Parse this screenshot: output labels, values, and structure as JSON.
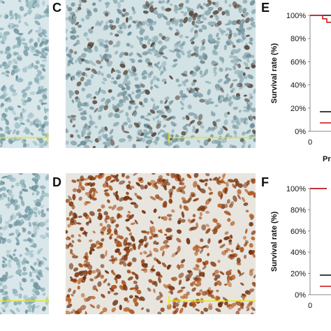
{
  "panels": {
    "left_top_img": {
      "tone": "light-blue"
    },
    "C": {
      "letter": "C",
      "tone": "light-blue-nuclei"
    },
    "left_bottom_img": {
      "tone": "light-blue"
    },
    "D": {
      "letter": "D",
      "tone": "brown-nuclei"
    },
    "E": {
      "letter": "E"
    },
    "F": {
      "letter": "F"
    }
  },
  "colors": {
    "stain_blue_bg": "#d7e6ea",
    "stain_blue_dark": "#7fa6b0",
    "stain_brown": "#9b4a1c",
    "scale_bar": "#e8e800",
    "series_black": "#111111",
    "series_red": "#d11a1a"
  },
  "chart_data": [
    {
      "type": "line",
      "panel": "E",
      "ylabel": "Survival rate (%)",
      "xlabel_visible_fragment": "Pr",
      "yticks": [
        "0%",
        "20%",
        "40%",
        "60%",
        "80%",
        "100%"
      ],
      "xticks": [
        "0"
      ],
      "ylim": [
        0,
        100
      ],
      "series": [
        {
          "color": "#111111",
          "values": [
            100,
            100,
            100,
            100,
            100
          ]
        },
        {
          "color": "#d11a1a",
          "values": [
            100,
            100,
            100,
            97,
            94
          ]
        }
      ]
    },
    {
      "type": "line",
      "panel": "F",
      "ylabel": "Survival rate (%)",
      "yticks": [
        "0%",
        "20%",
        "40%",
        "60%",
        "80%",
        "100%"
      ],
      "xticks": [
        "0"
      ],
      "ylim": [
        0,
        100
      ],
      "series": [
        {
          "color": "#111111",
          "values": [
            100,
            100,
            100,
            100
          ]
        },
        {
          "color": "#d11a1a",
          "values": [
            100,
            100,
            100,
            100
          ]
        }
      ]
    }
  ]
}
